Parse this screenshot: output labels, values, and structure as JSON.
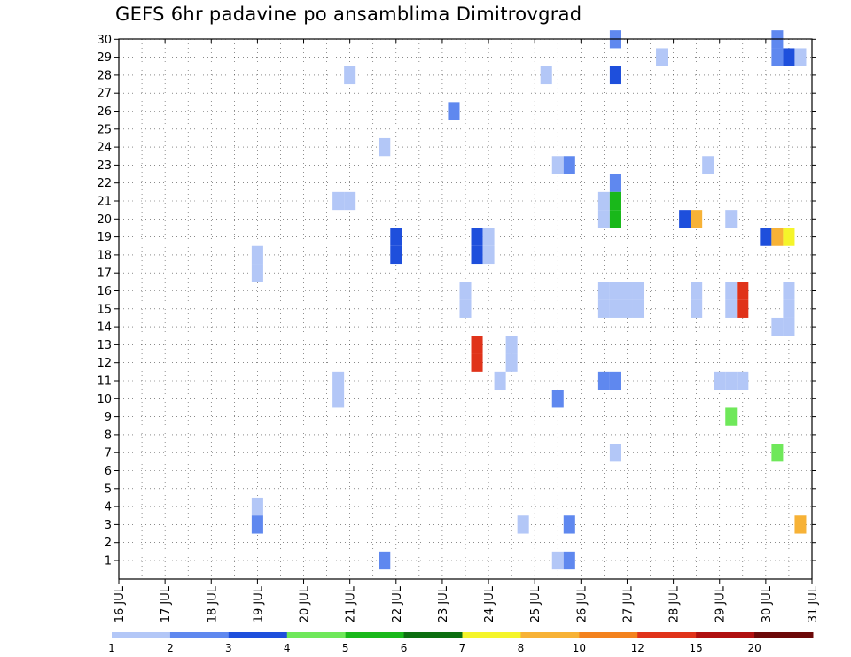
{
  "chart_data": {
    "type": "heatmap",
    "title": "GEFS 6hr padavine po ansamblima Dimitrovgrad",
    "x_tick_labels": [
      "16 JUL",
      "17 JUL",
      "18 JUL",
      "19 JUL",
      "20 JUL",
      "21 JUL",
      "22 JUL",
      "23 JUL",
      "24 JUL",
      "25 JUL",
      "26 JUL",
      "27 JUL",
      "28 JUL",
      "29 JUL",
      "30 JUL",
      "31 JUL"
    ],
    "x_range_days": [
      16,
      31
    ],
    "time_step_hours": 6,
    "y_members": [
      1,
      2,
      3,
      4,
      5,
      6,
      7,
      8,
      9,
      10,
      11,
      12,
      13,
      14,
      15,
      16,
      17,
      18,
      19,
      20,
      21,
      22,
      23,
      24,
      25,
      26,
      27,
      28,
      29,
      30
    ],
    "grid": true,
    "colorbar": {
      "position": "bottom",
      "labels": [
        "1",
        "2",
        "3",
        "4",
        "5",
        "6",
        "7",
        "8",
        "10",
        "12",
        "15",
        "20"
      ],
      "colors": [
        "#b3c7f7",
        "#5f88ef",
        "#1e4fdc",
        "#6fe85a",
        "#19b81a",
        "#0c6e10",
        "#f5f52a",
        "#f7b236",
        "#f3821e",
        "#e0331a",
        "#b01010",
        "#6c0808"
      ]
    },
    "cells": [
      {
        "member": 30,
        "x": 26.75,
        "c": 1
      },
      {
        "member": 30,
        "x": 30.25,
        "c": 1
      },
      {
        "member": 29,
        "x": 27.75,
        "c": 0
      },
      {
        "member": 29,
        "x": 30.25,
        "c": 1
      },
      {
        "member": 29,
        "x": 30.5,
        "c": 2
      },
      {
        "member": 29,
        "x": 30.75,
        "c": 0
      },
      {
        "member": 28,
        "x": 21.0,
        "c": 0
      },
      {
        "member": 28,
        "x": 25.25,
        "c": 0
      },
      {
        "member": 28,
        "x": 26.75,
        "c": 2
      },
      {
        "member": 26,
        "x": 23.25,
        "c": 1
      },
      {
        "member": 24,
        "x": 21.75,
        "c": 0
      },
      {
        "member": 23,
        "x": 25.5,
        "c": 0
      },
      {
        "member": 23,
        "x": 25.75,
        "c": 1
      },
      {
        "member": 23,
        "x": 28.75,
        "c": 0
      },
      {
        "member": 22,
        "x": 26.75,
        "c": 1
      },
      {
        "member": 21,
        "x": 20.75,
        "c": 0
      },
      {
        "member": 21,
        "x": 21.0,
        "c": 0
      },
      {
        "member": 21,
        "x": 26.5,
        "c": 0
      },
      {
        "member": 21,
        "x": 26.75,
        "c": 4
      },
      {
        "member": 20,
        "x": 26.5,
        "c": 0
      },
      {
        "member": 20,
        "x": 26.75,
        "c": 4
      },
      {
        "member": 20,
        "x": 28.25,
        "c": 2
      },
      {
        "member": 20,
        "x": 28.5,
        "c": 7
      },
      {
        "member": 20,
        "x": 29.25,
        "c": 0
      },
      {
        "member": 19,
        "x": 22.0,
        "c": 2
      },
      {
        "member": 19,
        "x": 23.75,
        "c": 2
      },
      {
        "member": 19,
        "x": 24.0,
        "c": 0
      },
      {
        "member": 19,
        "x": 30.0,
        "c": 2
      },
      {
        "member": 19,
        "x": 30.25,
        "c": 7
      },
      {
        "member": 19,
        "x": 30.5,
        "c": 6
      },
      {
        "member": 18,
        "x": 22.0,
        "c": 2
      },
      {
        "member": 18,
        "x": 23.75,
        "c": 2
      },
      {
        "member": 18,
        "x": 24.0,
        "c": 0
      },
      {
        "member": 18,
        "x": 19.0,
        "c": 0
      },
      {
        "member": 17,
        "x": 19.0,
        "c": 0
      },
      {
        "member": 16,
        "x": 23.5,
        "c": 0
      },
      {
        "member": 16,
        "x": 26.5,
        "c": 0
      },
      {
        "member": 16,
        "x": 26.75,
        "c": 0
      },
      {
        "member": 16,
        "x": 27.0,
        "c": 0
      },
      {
        "member": 16,
        "x": 27.25,
        "c": 0
      },
      {
        "member": 16,
        "x": 28.5,
        "c": 0
      },
      {
        "member": 16,
        "x": 29.25,
        "c": 0
      },
      {
        "member": 16,
        "x": 29.5,
        "c": 9
      },
      {
        "member": 16,
        "x": 30.5,
        "c": 0
      },
      {
        "member": 15,
        "x": 23.5,
        "c": 0
      },
      {
        "member": 15,
        "x": 26.5,
        "c": 0
      },
      {
        "member": 15,
        "x": 26.75,
        "c": 0
      },
      {
        "member": 15,
        "x": 27.0,
        "c": 0
      },
      {
        "member": 15,
        "x": 27.25,
        "c": 0
      },
      {
        "member": 15,
        "x": 28.5,
        "c": 0
      },
      {
        "member": 15,
        "x": 29.25,
        "c": 0
      },
      {
        "member": 15,
        "x": 29.5,
        "c": 9
      },
      {
        "member": 15,
        "x": 30.5,
        "c": 0
      },
      {
        "member": 14,
        "x": 30.25,
        "c": 0
      },
      {
        "member": 14,
        "x": 30.5,
        "c": 0
      },
      {
        "member": 13,
        "x": 23.75,
        "c": 9
      },
      {
        "member": 13,
        "x": 24.5,
        "c": 0
      },
      {
        "member": 12,
        "x": 23.75,
        "c": 9
      },
      {
        "member": 12,
        "x": 24.5,
        "c": 0
      },
      {
        "member": 11,
        "x": 20.75,
        "c": 0
      },
      {
        "member": 11,
        "x": 24.25,
        "c": 0
      },
      {
        "member": 11,
        "x": 26.5,
        "c": 1
      },
      {
        "member": 11,
        "x": 26.75,
        "c": 1
      },
      {
        "member": 11,
        "x": 29.0,
        "c": 0
      },
      {
        "member": 11,
        "x": 29.25,
        "c": 0
      },
      {
        "member": 11,
        "x": 29.5,
        "c": 0
      },
      {
        "member": 10,
        "x": 20.75,
        "c": 0
      },
      {
        "member": 10,
        "x": 25.5,
        "c": 1
      },
      {
        "member": 9,
        "x": 29.25,
        "c": 3
      },
      {
        "member": 7,
        "x": 26.75,
        "c": 0
      },
      {
        "member": 7,
        "x": 30.25,
        "c": 3
      },
      {
        "member": 4,
        "x": 19.0,
        "c": 0
      },
      {
        "member": 3,
        "x": 19.0,
        "c": 1
      },
      {
        "member": 3,
        "x": 24.75,
        "c": 0
      },
      {
        "member": 3,
        "x": 25.75,
        "c": 1
      },
      {
        "member": 3,
        "x": 30.75,
        "c": 7
      },
      {
        "member": 1,
        "x": 21.75,
        "c": 1
      },
      {
        "member": 1,
        "x": 25.5,
        "c": 0
      },
      {
        "member": 1,
        "x": 25.75,
        "c": 1
      }
    ]
  }
}
